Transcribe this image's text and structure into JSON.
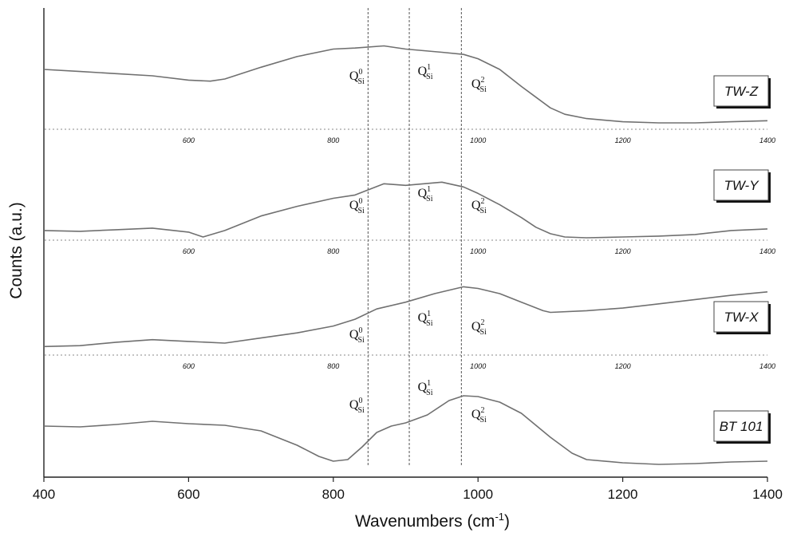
{
  "chart_data": {
    "type": "line",
    "xlabel": "Wavenumbers (cm",
    "xlabel_superscript": "-1",
    "xlabel_close": ")",
    "ylabel": "Counts (a.u.)",
    "xlim": [
      400,
      1400
    ],
    "x_ticks": [
      "400",
      "600",
      "800",
      "1000",
      "1200",
      "1400"
    ],
    "offset_baseline_ticks": [
      "600",
      "800",
      "1000",
      "1200",
      "1400"
    ],
    "grid": false,
    "reference_lines_x": [
      848,
      905,
      977
    ],
    "line_color": "#707070",
    "series": [
      {
        "name": "TW-Z",
        "x": [
          400,
          450,
          500,
          550,
          600,
          630,
          650,
          700,
          750,
          800,
          830,
          870,
          900,
          950,
          980,
          1000,
          1030,
          1060,
          1080,
          1100,
          1120,
          1150,
          1200,
          1250,
          1300,
          1350,
          1400
        ],
        "y": [
          0.56,
          0.54,
          0.52,
          0.5,
          0.46,
          0.45,
          0.47,
          0.58,
          0.68,
          0.75,
          0.76,
          0.78,
          0.75,
          0.72,
          0.7,
          0.66,
          0.56,
          0.4,
          0.3,
          0.2,
          0.14,
          0.1,
          0.07,
          0.06,
          0.06,
          0.07,
          0.08
        ],
        "annotations": [
          {
            "text": "Q",
            "sup": "0",
            "sub": "Si",
            "x": 848
          },
          {
            "text": "Q",
            "sup": "1",
            "sub": "Si",
            "x": 905
          },
          {
            "text": "Q",
            "sup": "2",
            "sub": "Si",
            "x": 977
          }
        ]
      },
      {
        "name": "TW-Y",
        "x": [
          400,
          450,
          500,
          550,
          600,
          620,
          650,
          700,
          750,
          800,
          830,
          870,
          900,
          950,
          980,
          1000,
          1030,
          1060,
          1080,
          1100,
          1120,
          1150,
          1200,
          1250,
          1300,
          1350,
          1400
        ],
        "y": [
          0.12,
          0.11,
          0.13,
          0.15,
          0.1,
          0.04,
          0.12,
          0.3,
          0.42,
          0.52,
          0.56,
          0.7,
          0.68,
          0.72,
          0.66,
          0.58,
          0.44,
          0.28,
          0.16,
          0.08,
          0.04,
          0.03,
          0.04,
          0.05,
          0.07,
          0.12,
          0.14
        ],
        "annotations": [
          {
            "text": "Q",
            "sup": "0",
            "sub": "Si",
            "x": 848
          },
          {
            "text": "Q",
            "sup": "1",
            "sub": "Si",
            "x": 905
          },
          {
            "text": "Q",
            "sup": "2",
            "sub": "Si",
            "x": 977
          }
        ]
      },
      {
        "name": "TW-X",
        "x": [
          400,
          450,
          500,
          550,
          600,
          650,
          700,
          750,
          800,
          830,
          860,
          900,
          940,
          980,
          1000,
          1030,
          1060,
          1090,
          1100,
          1150,
          1200,
          1250,
          1300,
          1350,
          1400
        ],
        "y": [
          0.1,
          0.11,
          0.15,
          0.18,
          0.16,
          0.14,
          0.2,
          0.26,
          0.34,
          0.42,
          0.54,
          0.62,
          0.72,
          0.8,
          0.78,
          0.72,
          0.62,
          0.52,
          0.5,
          0.52,
          0.55,
          0.6,
          0.65,
          0.7,
          0.74
        ],
        "annotations": [
          {
            "text": "Q",
            "sup": "0",
            "sub": "Si",
            "x": 848
          },
          {
            "text": "Q",
            "sup": "1",
            "sub": "Si",
            "x": 905
          },
          {
            "text": "Q",
            "sup": "2",
            "sub": "Si",
            "x": 977
          }
        ]
      },
      {
        "name": "BT 101",
        "x": [
          400,
          450,
          500,
          550,
          600,
          650,
          700,
          750,
          780,
          800,
          820,
          840,
          860,
          880,
          900,
          930,
          960,
          980,
          1000,
          1030,
          1060,
          1100,
          1130,
          1150,
          1200,
          1250,
          1300,
          1350,
          1400
        ],
        "y": [
          0.54,
          0.53,
          0.56,
          0.6,
          0.57,
          0.55,
          0.48,
          0.3,
          0.16,
          0.1,
          0.12,
          0.28,
          0.46,
          0.54,
          0.58,
          0.68,
          0.86,
          0.92,
          0.91,
          0.84,
          0.7,
          0.4,
          0.2,
          0.12,
          0.08,
          0.06,
          0.07,
          0.09,
          0.1
        ],
        "annotations": [
          {
            "text": "Q",
            "sup": "0",
            "sub": "Si",
            "x": 848
          },
          {
            "text": "Q",
            "sup": "1",
            "sub": "Si",
            "x": 905
          },
          {
            "text": "Q",
            "sup": "2",
            "sub": "Si",
            "x": 977
          }
        ]
      }
    ]
  }
}
